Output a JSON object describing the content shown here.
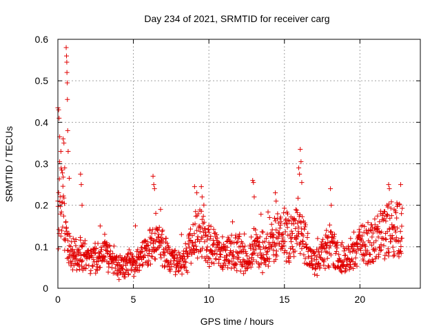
{
  "chart_data": {
    "type": "scatter",
    "title": "Day 234 of 2021, SRMTID for receiver carg",
    "xlabel": "GPS time / hours",
    "ylabel": "SRMTID / TECUs",
    "xlim": [
      0,
      24
    ],
    "ylim": [
      0,
      0.6
    ],
    "xticks": [
      0,
      5,
      10,
      15,
      20
    ],
    "yticks": [
      0,
      0.1,
      0.2,
      0.3,
      0.4,
      0.5,
      0.6
    ],
    "ytick_labels": [
      "0",
      "0.1",
      "0.2",
      "0.3",
      "0.4",
      "0.5",
      "0.6"
    ],
    "grid": true,
    "marker": "+",
    "series": [
      {
        "name": "SRMTID",
        "color": "#e00000",
        "profile": [
          [
            0.0,
            0.14
          ],
          [
            0.1,
            0.22
          ],
          [
            0.3,
            0.2
          ],
          [
            0.5,
            0.13
          ],
          [
            0.7,
            0.09
          ],
          [
            1.0,
            0.08
          ],
          [
            1.5,
            0.08
          ],
          [
            2.0,
            0.07
          ],
          [
            2.5,
            0.07
          ],
          [
            3.0,
            0.08
          ],
          [
            3.5,
            0.07
          ],
          [
            4.0,
            0.05
          ],
          [
            4.5,
            0.06
          ],
          [
            5.0,
            0.06
          ],
          [
            5.5,
            0.07
          ],
          [
            6.0,
            0.09
          ],
          [
            6.5,
            0.12
          ],
          [
            7.0,
            0.09
          ],
          [
            7.5,
            0.07
          ],
          [
            8.0,
            0.06
          ],
          [
            8.5,
            0.07
          ],
          [
            9.0,
            0.12
          ],
          [
            9.5,
            0.14
          ],
          [
            10.0,
            0.1
          ],
          [
            10.5,
            0.09
          ],
          [
            11.0,
            0.08
          ],
          [
            11.5,
            0.09
          ],
          [
            12.0,
            0.09
          ],
          [
            12.5,
            0.06
          ],
          [
            13.0,
            0.1
          ],
          [
            13.5,
            0.08
          ],
          [
            14.0,
            0.1
          ],
          [
            14.5,
            0.12
          ],
          [
            15.0,
            0.13
          ],
          [
            15.5,
            0.12
          ],
          [
            16.0,
            0.16
          ],
          [
            16.5,
            0.09
          ],
          [
            17.0,
            0.06
          ],
          [
            17.5,
            0.08
          ],
          [
            18.0,
            0.1
          ],
          [
            18.5,
            0.08
          ],
          [
            19.0,
            0.07
          ],
          [
            19.5,
            0.08
          ],
          [
            20.0,
            0.1
          ],
          [
            20.5,
            0.11
          ],
          [
            21.0,
            0.12
          ],
          [
            21.5,
            0.14
          ],
          [
            22.0,
            0.14
          ],
          [
            22.5,
            0.14
          ],
          [
            22.8,
            0.15
          ]
        ],
        "samples_per_hour": 60,
        "spikes": [
          [
            0.0,
            0.435
          ],
          [
            0.05,
            0.43
          ],
          [
            0.08,
            0.41
          ],
          [
            0.12,
            0.365
          ],
          [
            0.2,
            0.33
          ],
          [
            0.25,
            0.285
          ],
          [
            0.35,
            0.36
          ],
          [
            0.4,
            0.35
          ],
          [
            0.45,
            0.29
          ],
          [
            0.55,
            0.58
          ],
          [
            0.57,
            0.56
          ],
          [
            0.59,
            0.545
          ],
          [
            0.6,
            0.52
          ],
          [
            0.62,
            0.495
          ],
          [
            0.63,
            0.455
          ],
          [
            0.65,
            0.38
          ],
          [
            0.68,
            0.33
          ],
          [
            0.75,
            0.265
          ],
          [
            1.5,
            0.275
          ],
          [
            1.55,
            0.25
          ],
          [
            1.6,
            0.2
          ],
          [
            2.8,
            0.15
          ],
          [
            3.1,
            0.13
          ],
          [
            6.3,
            0.27
          ],
          [
            6.35,
            0.25
          ],
          [
            6.4,
            0.24
          ],
          [
            6.8,
            0.19
          ],
          [
            9.05,
            0.245
          ],
          [
            9.2,
            0.23
          ],
          [
            9.5,
            0.245
          ],
          [
            9.55,
            0.22
          ],
          [
            12.9,
            0.26
          ],
          [
            12.95,
            0.255
          ],
          [
            13.0,
            0.22
          ],
          [
            14.4,
            0.23
          ],
          [
            14.45,
            0.21
          ],
          [
            15.95,
            0.29
          ],
          [
            16.0,
            0.275
          ],
          [
            16.05,
            0.335
          ],
          [
            16.1,
            0.305
          ],
          [
            16.15,
            0.255
          ],
          [
            18.05,
            0.24
          ],
          [
            18.1,
            0.2
          ],
          [
            21.9,
            0.25
          ],
          [
            21.95,
            0.24
          ],
          [
            22.7,
            0.25
          ],
          [
            22.75,
            0.18
          ]
        ]
      }
    ]
  }
}
